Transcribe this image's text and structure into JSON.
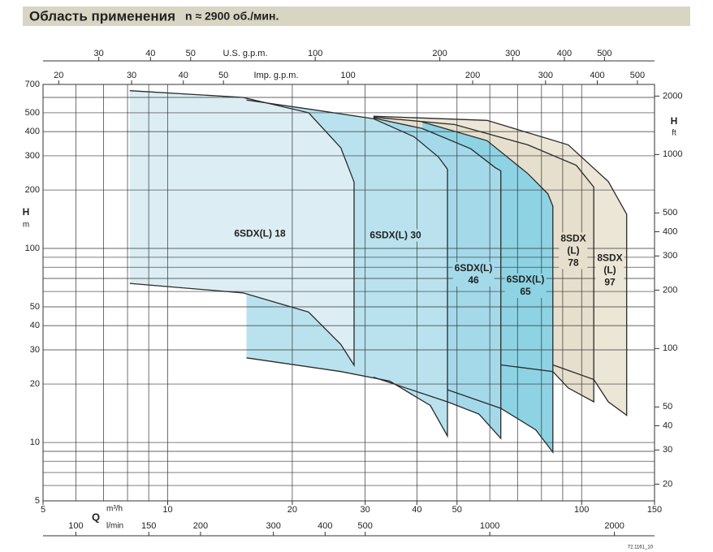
{
  "chart_data": {
    "type": "area",
    "title": "Область применения",
    "subtitle": "n ≈ 2900 об./мин.",
    "xlabel_symbol": "Q",
    "xlabel": "m³/h",
    "ylabel": "H",
    "yunit": "m",
    "y2label": "H",
    "y2unit": "ft",
    "code": "72.1161_10",
    "log_x": true,
    "log_y": true,
    "grid": true,
    "xlim": [
      5,
      150
    ],
    "xticks": [
      5,
      10,
      20,
      30,
      40,
      50,
      100,
      150
    ],
    "xgrid": [
      6,
      7,
      8,
      9,
      60,
      70,
      80,
      90
    ],
    "ylim": [
      5,
      700
    ],
    "yticks": [
      5,
      10,
      20,
      30,
      40,
      50,
      100,
      200,
      300,
      400,
      500,
      700
    ],
    "ygrid": [
      6,
      7,
      8,
      9,
      60,
      70,
      80,
      90,
      600
    ],
    "y2lim": [
      16.4,
      2297
    ],
    "y2ticks": [
      20,
      30,
      40,
      50,
      100,
      200,
      300,
      400,
      500,
      1000,
      2000
    ],
    "top_axes": [
      {
        "label": "U.S. g.p.m.",
        "lim": [
          22.0,
          660.5
        ],
        "ticks": [
          30,
          40,
          50,
          100,
          200,
          300,
          400,
          500
        ]
      },
      {
        "label": "Imp. g.p.m.",
        "lim": [
          18.33,
          550
        ],
        "ticks": [
          20,
          30,
          40,
          50,
          100,
          200,
          300,
          400,
          500
        ]
      }
    ],
    "bottom_axis": {
      "label": "l/min",
      "lim": [
        83.3,
        2500
      ],
      "ticks": [
        100,
        150,
        200,
        300,
        400,
        500,
        1000,
        2000
      ]
    },
    "series": [
      {
        "name": "6SDX(L) 18",
        "color": "#dceef4",
        "x": [
          8.1,
          15.2,
          21.9,
          26.2,
          28.2,
          28.2,
          26.2,
          21.9,
          15.2,
          8.1
        ],
        "values": [
          650,
          600,
          500,
          330,
          220,
          25,
          32,
          47,
          59,
          66
        ]
      },
      {
        "name": "6SDX(L) 30",
        "color": "#b9e2ee",
        "x": [
          15.5,
          21.9,
          31.4,
          39.4,
          45.1,
          47.4,
          47.4,
          43.1,
          34.4,
          26.2,
          15.5
        ],
        "values": [
          582,
          523,
          466,
          376,
          296,
          256,
          10.8,
          15.5,
          20.7,
          23.2,
          27.3
        ]
      },
      {
        "name": "6SDX(L)\n46",
        "color": "#a4d9ea",
        "x": [
          31.4,
          41.2,
          54.0,
          61.8,
          63.8,
          63.8,
          56.5,
          47.4,
          31.4
        ],
        "values": [
          470,
          415,
          326,
          261,
          251,
          10.5,
          14.0,
          16.2,
          21.7
        ]
      },
      {
        "name": "6SDX(L)\n65",
        "color": "#8dd3e3",
        "x": [
          41.2,
          59.1,
          74.1,
          82.9,
          85.2,
          85.2,
          77.5,
          63.8,
          47.4
        ],
        "values": [
          448,
          359,
          243,
          191,
          165,
          8.9,
          11.6,
          15.0,
          18.7
        ]
      },
      {
        "name": "8SDX\n(L)\n78",
        "color": "#e6dfcd",
        "x": [
          31.4,
          49.3,
          74.1,
          97.1,
          107,
          107,
          92.8,
          85.2,
          63.8
        ],
        "values": [
          475,
          435,
          342,
          268,
          207,
          16.2,
          19.1,
          23.2,
          25.1
        ]
      },
      {
        "name": "8SDX\n(L)\n97",
        "color": "#ece6d6",
        "x": [
          31.4,
          59.1,
          92.8,
          116,
          128.5,
          128.5,
          116,
          107,
          85.2
        ],
        "values": [
          480,
          457,
          342,
          221,
          150,
          13.8,
          16.2,
          21.1,
          25.1
        ]
      }
    ]
  }
}
